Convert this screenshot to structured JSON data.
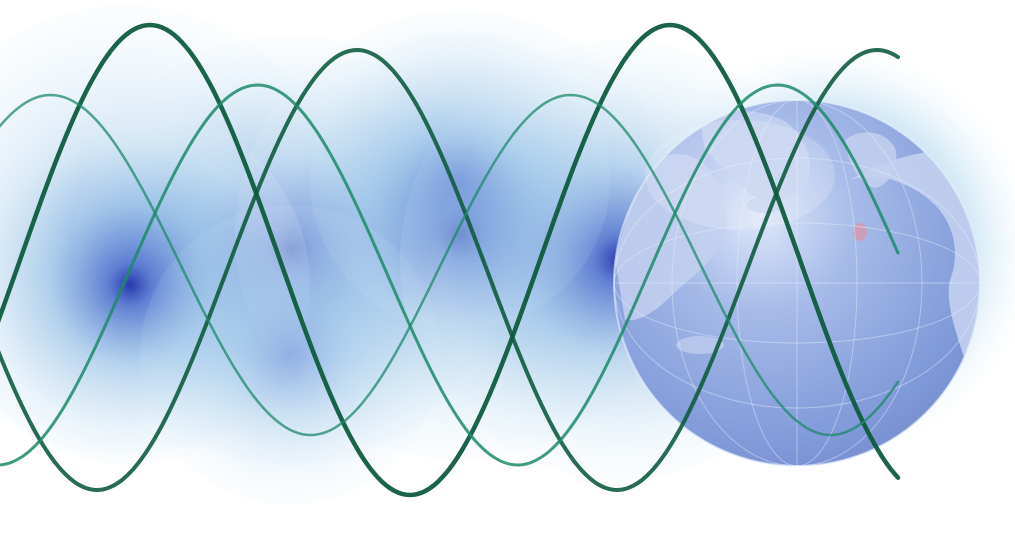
{
  "illustration": {
    "motifs": [
      "blue-orb",
      "sine-wave-ribbon",
      "globe-icon"
    ],
    "colors": {
      "background": "#ffffff",
      "orb_outer": "#cfe6f4",
      "orb_mid": "#7eb0e0",
      "orb_core": "#1f2fa8",
      "wave_primary": "#0f5b3f",
      "wave_secondary": "#1d8a6a",
      "globe_ocean": "#7d97d8",
      "globe_land": "#c3d0ef",
      "globe_glow": "#b9dcf0"
    }
  }
}
